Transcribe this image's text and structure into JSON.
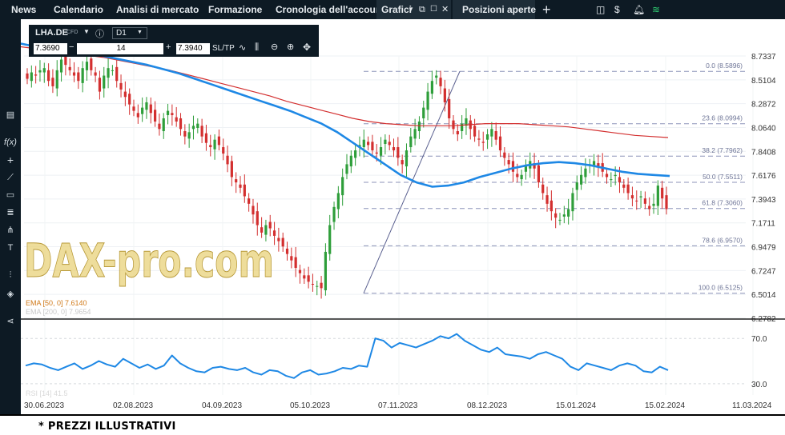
{
  "nav": {
    "items": [
      "News",
      "Calendario",
      "Analisi di mercato",
      "Formazione",
      "Cronologia dell'account"
    ],
    "charts_tab": "Grafici",
    "open_positions_tab": "Posizioni aperte",
    "add_tab": "+"
  },
  "instrument": {
    "symbol": "LHA.DE",
    "type_badge": "CFD",
    "timeframe": "D1",
    "sell_price": "7.3690",
    "quantity": "14",
    "buy_price": "7.3940",
    "sl_tp_label": "SL/TP"
  },
  "indicators": {
    "ema50_label": "EMA [50, 0] 7.6140",
    "ema200_label": "EMA [200, 0] 7.9654",
    "rsi_label": "RSI [14] 41.5"
  },
  "watermark": "DAX-pro.com",
  "footer_note": "* PREZZI ILLUSTRATIVI",
  "colors": {
    "ema50": "#1e88e5",
    "ema200": "#d32f2f",
    "candle_up": "#2e9e3a",
    "candle_down": "#d32f2f",
    "fib": "#8c93b8",
    "rsi": "#1e88e5",
    "nav_bg": "#0d1a24"
  },
  "chart_data": {
    "type": "candlestick",
    "price_axis": {
      "ticks": [
        "8.7337",
        "8.5104",
        "8.2872",
        "8.0640",
        "7.8408",
        "7.6176",
        "7.3943",
        "7.1711",
        "6.9479",
        "6.7247",
        "6.5014",
        "6.2782"
      ],
      "range": [
        6.2782,
        8.7337
      ]
    },
    "time_axis": {
      "ticks": [
        "30.06.2023",
        "02.08.2023",
        "04.09.2023",
        "05.10.2023",
        "07.11.2023",
        "08.12.2023",
        "15.01.2024",
        "15.02.2024",
        "11.03.2024"
      ]
    },
    "fibonacci": [
      {
        "label": "0.0 (8.5896)",
        "value": 8.5896
      },
      {
        "label": "23.6 (8.0994)",
        "value": 8.0994
      },
      {
        "label": "38.2 (7.7962)",
        "value": 7.7962
      },
      {
        "label": "50.0 (7.5511)",
        "value": 7.5511
      },
      {
        "label": "61.8 (7.3060)",
        "value": 7.306
      },
      {
        "label": "78.6 (6.9570)",
        "value": 6.957
      },
      {
        "label": "100.0 (6.5125)",
        "value": 6.5125
      }
    ],
    "close": [
      8.52,
      8.58,
      8.55,
      8.6,
      8.62,
      8.5,
      8.45,
      8.6,
      8.7,
      8.65,
      8.6,
      8.55,
      8.5,
      8.62,
      8.68,
      8.6,
      8.55,
      8.4,
      8.55,
      8.62,
      8.6,
      8.5,
      8.42,
      8.35,
      8.28,
      8.22,
      8.16,
      8.25,
      8.3,
      8.2,
      8.12,
      8.05,
      8.15,
      8.22,
      8.18,
      8.12,
      8.05,
      7.98,
      8.02,
      8.08,
      8.1,
      7.98,
      7.92,
      7.88,
      7.95,
      7.9,
      7.82,
      7.72,
      7.6,
      7.55,
      7.5,
      7.42,
      7.35,
      7.25,
      7.15,
      7.08,
      7.15,
      7.12,
      7.05,
      7.0,
      6.95,
      6.88,
      6.82,
      6.75,
      6.7,
      6.65,
      6.62,
      6.6,
      6.58,
      6.56,
      6.9,
      7.15,
      7.32,
      7.45,
      7.6,
      7.72,
      7.8,
      7.85,
      7.9,
      7.95,
      7.9,
      7.85,
      7.82,
      7.88,
      7.95,
      7.9,
      7.85,
      7.78,
      7.72,
      7.85,
      7.98,
      8.05,
      8.12,
      8.25,
      8.4,
      8.5,
      8.55,
      8.45,
      8.3,
      8.15,
      8.05,
      8.0,
      8.1,
      8.15,
      8.05,
      7.98,
      7.95,
      7.92,
      8.0,
      8.05,
      7.95,
      7.85,
      7.78,
      7.72,
      7.65,
      7.6,
      7.62,
      7.7,
      7.75,
      7.68,
      7.55,
      7.45,
      7.35,
      7.28,
      7.22,
      7.2,
      7.25,
      7.3,
      7.45,
      7.55,
      7.62,
      7.68,
      7.72,
      7.75,
      7.7,
      7.65,
      7.6,
      7.58,
      7.62,
      7.55,
      7.5,
      7.45,
      7.4,
      7.38,
      7.42,
      7.35,
      7.3,
      7.35,
      7.52,
      7.4,
      7.3
    ],
    "ema50": [
      8.85,
      8.82,
      8.8,
      8.78,
      8.76,
      8.74,
      8.71,
      8.68,
      8.65,
      8.61,
      8.57,
      8.52,
      8.47,
      8.42,
      8.37,
      8.32,
      8.27,
      8.22,
      8.16,
      8.1,
      8.02,
      7.92,
      7.82,
      7.72,
      7.62,
      7.55,
      7.51,
      7.52,
      7.55,
      7.6,
      7.64,
      7.68,
      7.71,
      7.73,
      7.74,
      7.73,
      7.71,
      7.68,
      7.65,
      7.63,
      7.62,
      7.61
    ],
    "ema200": [
      8.82,
      8.8,
      8.78,
      8.76,
      8.74,
      8.72,
      8.69,
      8.66,
      8.63,
      8.6,
      8.56,
      8.52,
      8.48,
      8.44,
      8.4,
      8.36,
      8.31,
      8.27,
      8.23,
      8.19,
      8.15,
      8.12,
      8.1,
      8.09,
      8.08,
      8.08,
      8.08,
      8.09,
      8.1,
      8.1,
      8.1,
      8.09,
      8.08,
      8.07,
      8.05,
      8.03,
      8.01,
      7.99,
      7.98,
      7.97
    ],
    "rsi": {
      "ticks": [
        "70.0",
        "30.0"
      ],
      "range": [
        20,
        85
      ],
      "values": [
        46,
        48,
        47,
        44,
        42,
        45,
        48,
        43,
        46,
        50,
        47,
        45,
        52,
        48,
        44,
        47,
        43,
        46,
        55,
        48,
        44,
        41,
        40,
        44,
        45,
        43,
        42,
        44,
        40,
        38,
        42,
        41,
        37,
        35,
        40,
        42,
        38,
        39,
        41,
        44,
        43,
        46,
        45,
        70,
        68,
        62,
        66,
        64,
        62,
        65,
        68,
        72,
        70,
        74,
        68,
        64,
        60,
        58,
        62,
        56,
        55,
        54,
        52,
        56,
        58,
        55,
        52,
        45,
        42,
        48,
        46,
        44,
        42,
        46,
        48,
        46,
        41,
        40,
        45,
        42
      ]
    }
  }
}
